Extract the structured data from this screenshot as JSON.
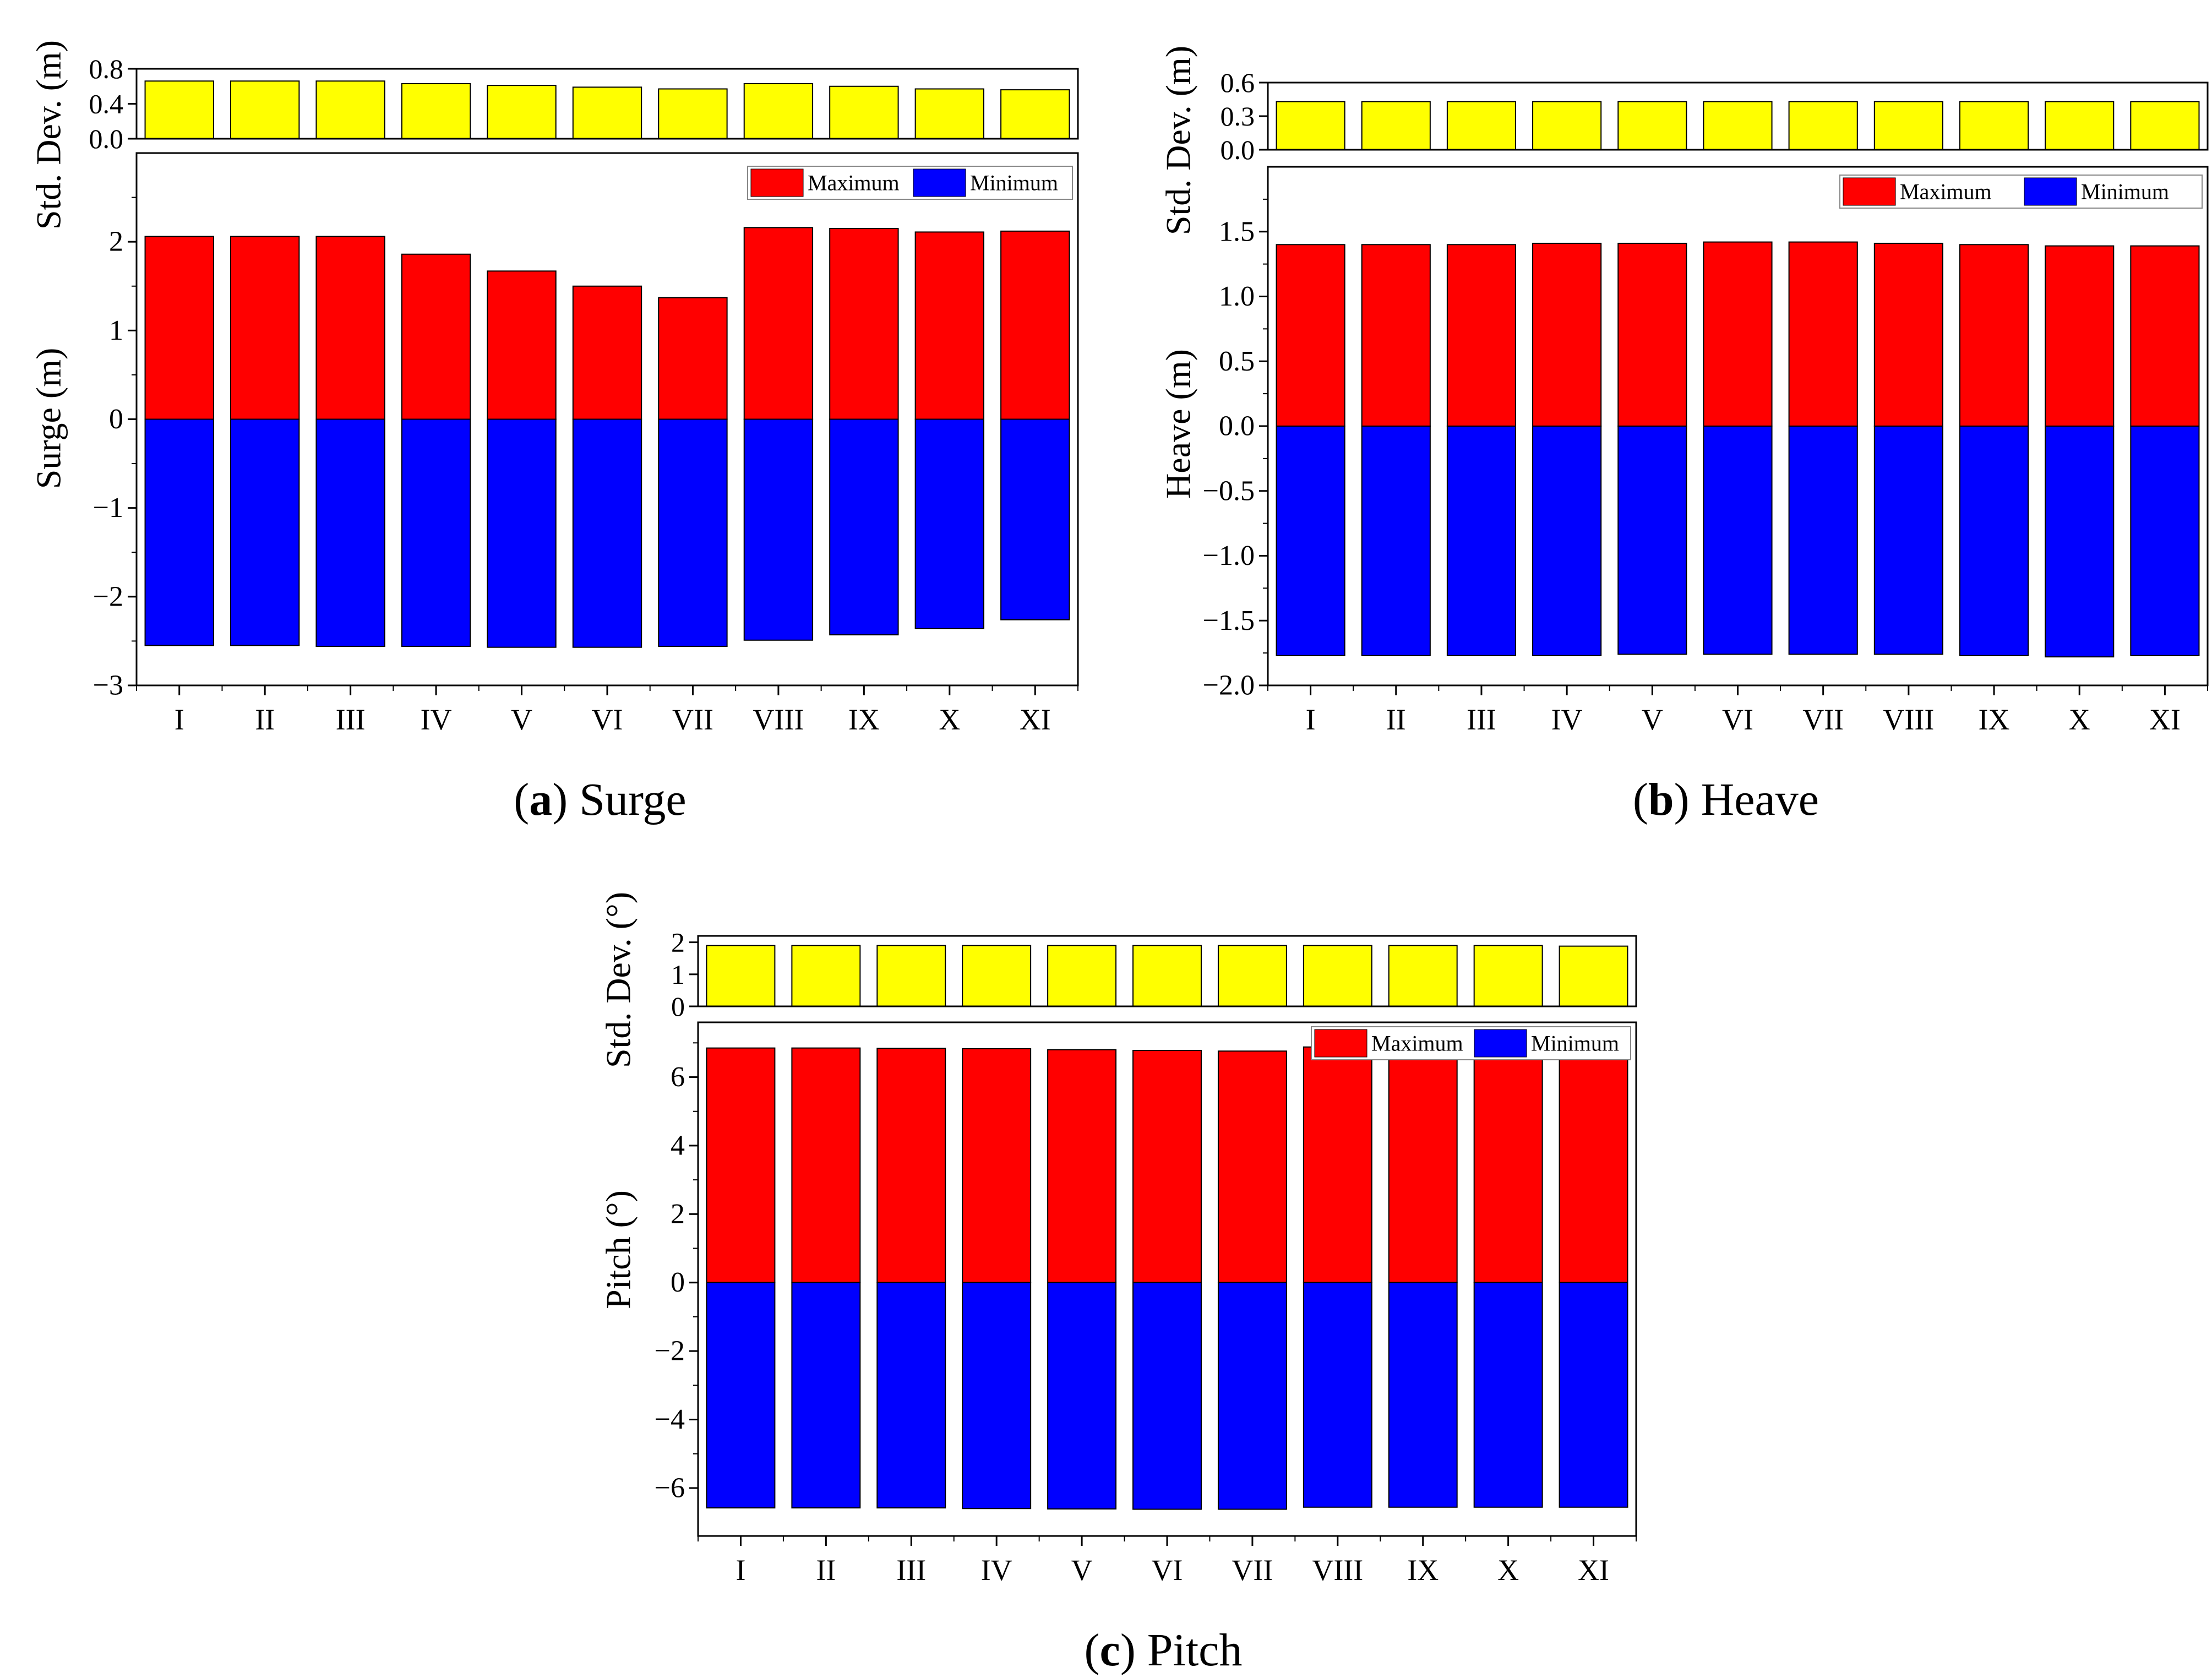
{
  "chart_data": [
    {
      "id": "surge",
      "type": "bar",
      "categories": [
        "I",
        "II",
        "III",
        "IV",
        "V",
        "VI",
        "VII",
        "VIII",
        "IX",
        "X",
        "XI"
      ],
      "caption": {
        "letter": "(a)",
        "text": "Surge",
        "label": "(a) Surge"
      },
      "std": {
        "ylabel": "Std. Dev. (m)",
        "ylim": [
          0,
          0.8
        ],
        "ticks": [
          0.0,
          0.4,
          0.8
        ],
        "tick_labels": [
          "0.0",
          "0.4",
          "0.8"
        ],
        "values": [
          0.66,
          0.66,
          0.66,
          0.63,
          0.61,
          0.59,
          0.57,
          0.63,
          0.6,
          0.57,
          0.56
        ]
      },
      "main": {
        "ylabel": "Surge (m)",
        "ylim": [
          -3,
          3
        ],
        "ticks": [
          -3,
          -2,
          -1,
          0,
          1,
          2
        ],
        "tick_labels": [
          "−3",
          "−2",
          "−1",
          "0",
          "1",
          "2"
        ],
        "series": [
          {
            "name": "Maximum",
            "values": [
              2.06,
              2.06,
              2.06,
              1.86,
              1.67,
              1.5,
              1.37,
              2.16,
              2.15,
              2.11,
              2.12
            ]
          },
          {
            "name": "Minimum",
            "values": [
              -2.55,
              -2.55,
              -2.56,
              -2.56,
              -2.57,
              -2.57,
              -2.56,
              -2.49,
              -2.43,
              -2.36,
              -2.26
            ]
          }
        ]
      },
      "legend": {
        "position": "top-right",
        "entries": [
          "Maximum",
          "Minimum"
        ]
      }
    },
    {
      "id": "heave",
      "type": "bar",
      "categories": [
        "I",
        "II",
        "III",
        "IV",
        "V",
        "VI",
        "VII",
        "VIII",
        "IX",
        "X",
        "XI"
      ],
      "caption": {
        "letter": "(b)",
        "text": "Heave",
        "label": "(b) Heave"
      },
      "std": {
        "ylabel": "Std. Dev. (m)",
        "ylim": [
          0,
          0.6
        ],
        "ticks": [
          0.0,
          0.3,
          0.6
        ],
        "tick_labels": [
          "0.0",
          "0.3",
          "0.6"
        ],
        "values": [
          0.43,
          0.43,
          0.43,
          0.43,
          0.43,
          0.43,
          0.43,
          0.43,
          0.43,
          0.43,
          0.43
        ]
      },
      "main": {
        "ylabel": "Heave (m)",
        "ylim": [
          -2.0,
          2.0
        ],
        "ticks": [
          -2.0,
          -1.5,
          -1.0,
          -0.5,
          0.0,
          0.5,
          1.0,
          1.5
        ],
        "tick_labels": [
          "−2.0",
          "−1.5",
          "−1.0",
          "−0.5",
          "0.0",
          "0.5",
          "1.0",
          "1.5"
        ],
        "series": [
          {
            "name": "Maximum",
            "values": [
              1.4,
              1.4,
              1.4,
              1.41,
              1.41,
              1.42,
              1.42,
              1.41,
              1.4,
              1.39,
              1.39
            ]
          },
          {
            "name": "Minimum",
            "values": [
              -1.77,
              -1.77,
              -1.77,
              -1.77,
              -1.76,
              -1.76,
              -1.76,
              -1.76,
              -1.77,
              -1.78,
              -1.77
            ]
          }
        ]
      },
      "legend": {
        "position": "top-right",
        "entries": [
          "Maximum",
          "Minimum"
        ]
      }
    },
    {
      "id": "pitch",
      "type": "bar",
      "categories": [
        "I",
        "II",
        "III",
        "IV",
        "V",
        "VI",
        "VII",
        "VIII",
        "IX",
        "X",
        "XI"
      ],
      "caption": {
        "letter": "(c)",
        "text": "Pitch",
        "label": "(c) Pitch"
      },
      "std": {
        "ylabel": "Std. Dev. (°)",
        "ylim": [
          0,
          2.2
        ],
        "ticks": [
          0,
          1,
          2
        ],
        "tick_labels": [
          "0",
          "1",
          "2"
        ],
        "values": [
          1.9,
          1.9,
          1.9,
          1.9,
          1.9,
          1.9,
          1.9,
          1.9,
          1.9,
          1.9,
          1.88
        ]
      },
      "main": {
        "ylabel": "Pitch (°)",
        "ylim": [
          -7.4,
          7.6
        ],
        "ticks": [
          -6,
          -4,
          -2,
          0,
          2,
          4,
          6
        ],
        "tick_labels": [
          "−6",
          "−4",
          "−2",
          "0",
          "2",
          "4",
          "6"
        ],
        "series": [
          {
            "name": "Maximum",
            "values": [
              6.85,
              6.85,
              6.84,
              6.83,
              6.8,
              6.78,
              6.76,
              6.88,
              6.9,
              6.92,
              6.92
            ]
          },
          {
            "name": "Minimum",
            "values": [
              -6.58,
              -6.58,
              -6.58,
              -6.6,
              -6.61,
              -6.62,
              -6.62,
              -6.56,
              -6.56,
              -6.56,
              -6.56
            ]
          }
        ]
      },
      "legend": {
        "position": "top-right",
        "entries": [
          "Maximum",
          "Minimum"
        ]
      }
    }
  ],
  "colors": {
    "maximum": "#ff0000",
    "minimum": "#0000ff",
    "std": "#ffff00",
    "axis": "#000000"
  }
}
